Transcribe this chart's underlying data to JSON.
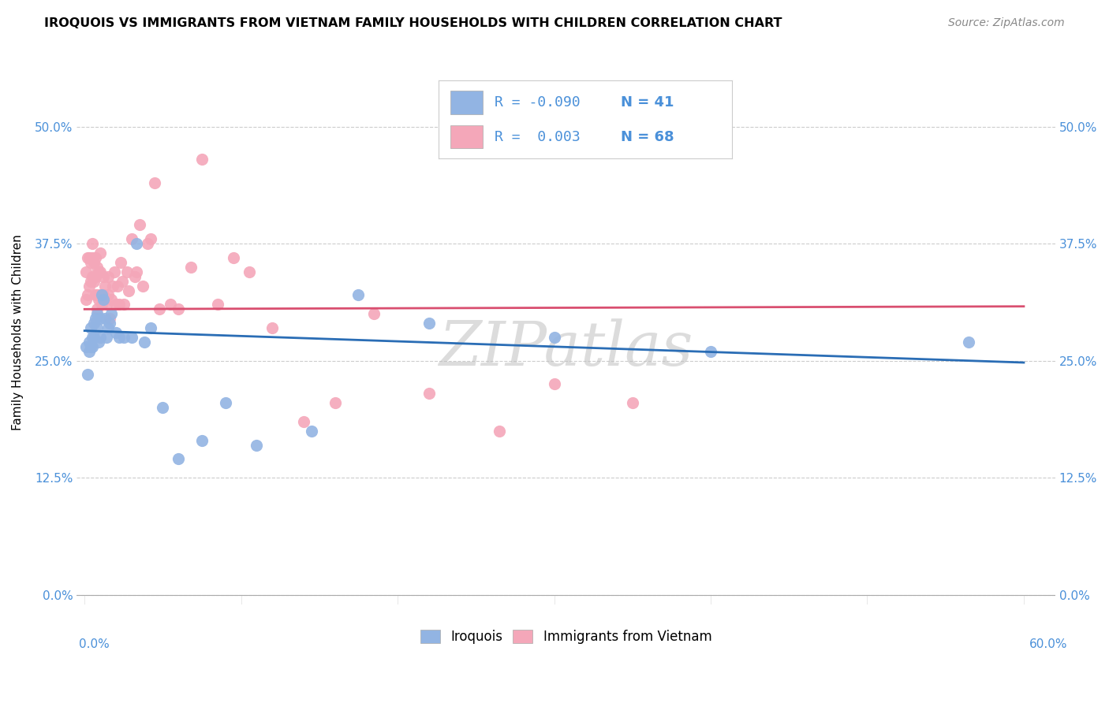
{
  "title": "IROQUOIS VS IMMIGRANTS FROM VIETNAM FAMILY HOUSEHOLDS WITH CHILDREN CORRELATION CHART",
  "source": "Source: ZipAtlas.com",
  "ylabel_ticks": [
    "0.0%",
    "12.5%",
    "25.0%",
    "37.5%",
    "50.0%"
  ],
  "ylabel_vals": [
    0.0,
    0.125,
    0.25,
    0.375,
    0.5
  ],
  "xlim": [
    -0.005,
    0.62
  ],
  "ylim": [
    -0.01,
    0.57
  ],
  "ylabel": "Family Households with Children",
  "legend_label1": "Iroquois",
  "legend_label2": "Immigrants from Vietnam",
  "R1": -0.09,
  "N1": 41,
  "R2": 0.003,
  "N2": 68,
  "color1": "#92b4e3",
  "color2": "#f4a7b9",
  "line_color1": "#2a6db5",
  "line_color2": "#d94f70",
  "tick_color": "#4a90d9",
  "watermark": "ZIPatlas",
  "iroquois_x": [
    0.001,
    0.002,
    0.003,
    0.003,
    0.004,
    0.004,
    0.005,
    0.005,
    0.006,
    0.006,
    0.007,
    0.008,
    0.008,
    0.009,
    0.01,
    0.01,
    0.011,
    0.012,
    0.013,
    0.014,
    0.015,
    0.016,
    0.017,
    0.02,
    0.022,
    0.025,
    0.03,
    0.033,
    0.038,
    0.042,
    0.05,
    0.06,
    0.075,
    0.09,
    0.11,
    0.145,
    0.175,
    0.22,
    0.3,
    0.4,
    0.565
  ],
  "iroquois_y": [
    0.265,
    0.235,
    0.27,
    0.26,
    0.265,
    0.285,
    0.265,
    0.275,
    0.275,
    0.29,
    0.295,
    0.285,
    0.3,
    0.27,
    0.275,
    0.295,
    0.32,
    0.315,
    0.295,
    0.275,
    0.285,
    0.29,
    0.3,
    0.28,
    0.275,
    0.275,
    0.275,
    0.375,
    0.27,
    0.285,
    0.2,
    0.145,
    0.165,
    0.205,
    0.16,
    0.175,
    0.32,
    0.29,
    0.275,
    0.26,
    0.27
  ],
  "vietnam_x": [
    0.001,
    0.001,
    0.002,
    0.002,
    0.003,
    0.003,
    0.004,
    0.004,
    0.005,
    0.005,
    0.005,
    0.006,
    0.006,
    0.007,
    0.007,
    0.007,
    0.008,
    0.008,
    0.008,
    0.009,
    0.009,
    0.01,
    0.01,
    0.01,
    0.011,
    0.012,
    0.012,
    0.013,
    0.013,
    0.014,
    0.015,
    0.015,
    0.016,
    0.017,
    0.018,
    0.019,
    0.02,
    0.021,
    0.022,
    0.023,
    0.024,
    0.025,
    0.027,
    0.028,
    0.03,
    0.032,
    0.033,
    0.035,
    0.037,
    0.04,
    0.042,
    0.045,
    0.048,
    0.055,
    0.06,
    0.068,
    0.075,
    0.085,
    0.095,
    0.105,
    0.12,
    0.14,
    0.16,
    0.185,
    0.22,
    0.265,
    0.3,
    0.35
  ],
  "vietnam_y": [
    0.315,
    0.345,
    0.32,
    0.36,
    0.33,
    0.36,
    0.335,
    0.355,
    0.34,
    0.36,
    0.375,
    0.335,
    0.355,
    0.32,
    0.34,
    0.36,
    0.305,
    0.32,
    0.35,
    0.315,
    0.345,
    0.32,
    0.345,
    0.365,
    0.31,
    0.32,
    0.34,
    0.33,
    0.315,
    0.31,
    0.32,
    0.34,
    0.295,
    0.315,
    0.33,
    0.345,
    0.31,
    0.33,
    0.31,
    0.355,
    0.335,
    0.31,
    0.345,
    0.325,
    0.38,
    0.34,
    0.345,
    0.395,
    0.33,
    0.375,
    0.38,
    0.44,
    0.305,
    0.31,
    0.305,
    0.35,
    0.465,
    0.31,
    0.36,
    0.345,
    0.285,
    0.185,
    0.205,
    0.3,
    0.215,
    0.175,
    0.225,
    0.205
  ],
  "blue_line_x0": 0.0,
  "blue_line_y0": 0.282,
  "blue_line_x1": 0.6,
  "blue_line_y1": 0.248,
  "pink_line_x0": 0.0,
  "pink_line_y0": 0.305,
  "pink_line_x1": 0.6,
  "pink_line_y1": 0.308
}
